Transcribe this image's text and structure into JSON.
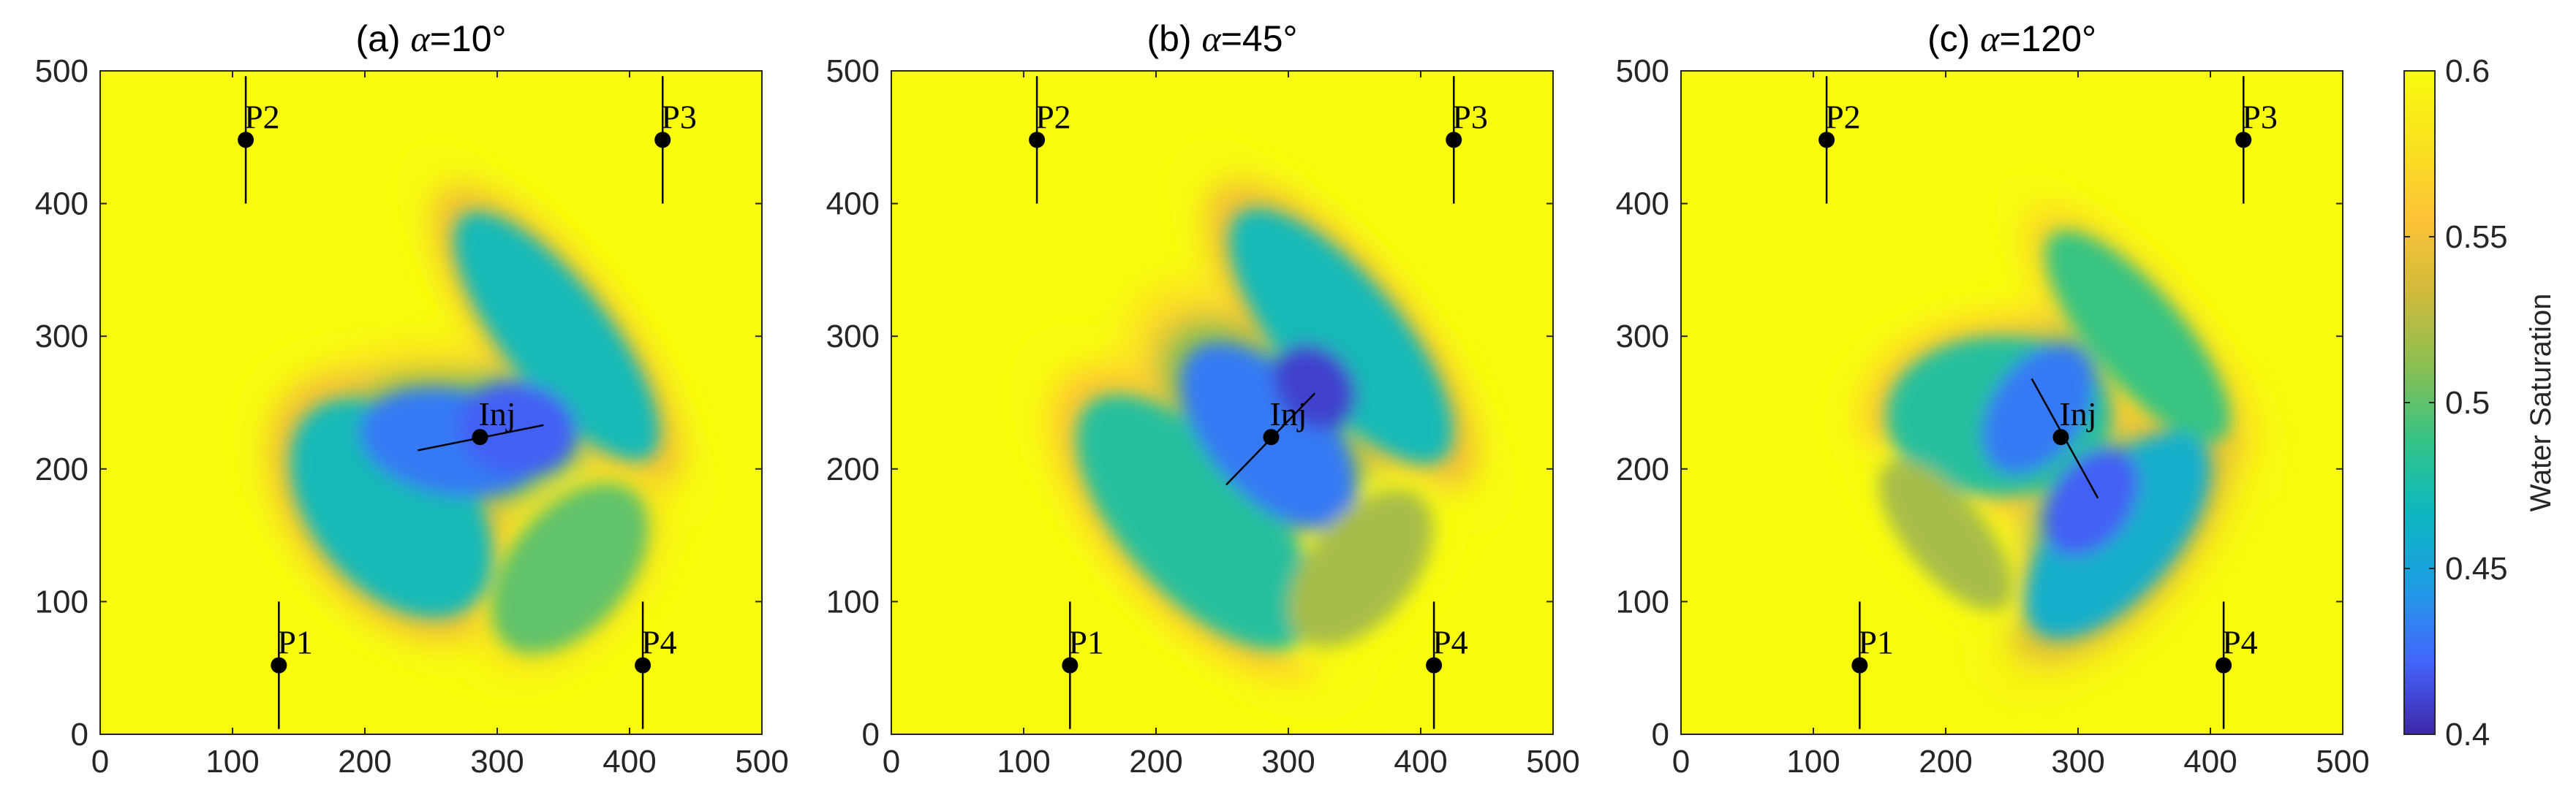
{
  "chart_data": [
    {
      "type": "heatmap",
      "title": "(a) α=10°",
      "title_prefix": "(a) ",
      "title_symbol": "α",
      "title_suffix": "=10°",
      "angle_deg": 10,
      "xlim": [
        0,
        500
      ],
      "ylim": [
        0,
        500
      ],
      "xticks": [
        0,
        100,
        200,
        300,
        400,
        500
      ],
      "yticks": [
        0,
        100,
        200,
        300,
        400,
        500
      ],
      "wells": [
        {
          "name": "P1",
          "x": 135,
          "y": 52
        },
        {
          "name": "P2",
          "x": 110,
          "y": 448
        },
        {
          "name": "P3",
          "x": 425,
          "y": 448
        },
        {
          "name": "P4",
          "x": 410,
          "y": 52
        },
        {
          "name": "Inj",
          "x": 287,
          "y": 224
        }
      ],
      "lobes": [
        {
          "x": 220,
          "y": 170,
          "rx": 60,
          "ry": 95,
          "rot": 40,
          "v": 0.47
        },
        {
          "x": 345,
          "y": 300,
          "rx": 40,
          "ry": 115,
          "rot": 38,
          "v": 0.47
        },
        {
          "x": 265,
          "y": 220,
          "rx": 70,
          "ry": 40,
          "rot": -10,
          "v": 0.43
        },
        {
          "x": 315,
          "y": 230,
          "rx": 45,
          "ry": 35,
          "rot": -10,
          "v": 0.42
        },
        {
          "x": 355,
          "y": 125,
          "rx": 45,
          "ry": 75,
          "rot": -40,
          "v": 0.5
        }
      ],
      "fractures": [
        {
          "x1": 240,
          "y1": 214,
          "x2": 335,
          "y2": 233
        }
      ]
    },
    {
      "type": "heatmap",
      "title": "(b) α=45°",
      "title_prefix": "(b) ",
      "title_symbol": "α",
      "title_suffix": "=45°",
      "angle_deg": 45,
      "xlim": [
        0,
        500
      ],
      "ylim": [
        0,
        500
      ],
      "xticks": [
        0,
        100,
        200,
        300,
        400,
        500
      ],
      "yticks": [
        0,
        100,
        200,
        300,
        400,
        500
      ],
      "wells": [
        {
          "name": "P1",
          "x": 135,
          "y": 52
        },
        {
          "name": "P2",
          "x": 110,
          "y": 448
        },
        {
          "name": "P3",
          "x": 425,
          "y": 448
        },
        {
          "name": "P4",
          "x": 410,
          "y": 52
        },
        {
          "name": "Inj",
          "x": 287,
          "y": 224
        }
      ],
      "lobes": [
        {
          "x": 230,
          "y": 160,
          "rx": 55,
          "ry": 120,
          "rot": 42,
          "v": 0.48
        },
        {
          "x": 340,
          "y": 300,
          "rx": 45,
          "ry": 120,
          "rot": 40,
          "v": 0.47
        },
        {
          "x": 285,
          "y": 225,
          "rx": 45,
          "ry": 85,
          "rot": 42,
          "v": 0.43
        },
        {
          "x": 320,
          "y": 262,
          "rx": 28,
          "ry": 35,
          "rot": 40,
          "v": 0.41
        },
        {
          "x": 355,
          "y": 125,
          "rx": 40,
          "ry": 70,
          "rot": -40,
          "v": 0.52
        }
      ],
      "fractures": [
        {
          "x1": 253,
          "y1": 188,
          "x2": 320,
          "y2": 257
        }
      ]
    },
    {
      "type": "heatmap",
      "title": "(c) α=120°",
      "title_prefix": "(c) ",
      "title_symbol": "α",
      "title_suffix": "=120°",
      "angle_deg": 120,
      "xlim": [
        0,
        500
      ],
      "ylim": [
        0,
        500
      ],
      "xticks": [
        0,
        100,
        200,
        300,
        400,
        500
      ],
      "yticks": [
        0,
        100,
        200,
        300,
        400,
        500
      ],
      "wells": [
        {
          "name": "P1",
          "x": 135,
          "y": 52
        },
        {
          "name": "P2",
          "x": 110,
          "y": 448
        },
        {
          "name": "P3",
          "x": 425,
          "y": 448
        },
        {
          "name": "P4",
          "x": 410,
          "y": 52
        },
        {
          "name": "Inj",
          "x": 287,
          "y": 224
        }
      ],
      "lobes": [
        {
          "x": 240,
          "y": 240,
          "rx": 85,
          "ry": 60,
          "rot": 0,
          "v": 0.48
        },
        {
          "x": 345,
          "y": 300,
          "rx": 35,
          "ry": 100,
          "rot": 40,
          "v": 0.49
        },
        {
          "x": 330,
          "y": 150,
          "rx": 45,
          "ry": 95,
          "rot": -40,
          "v": 0.46
        },
        {
          "x": 270,
          "y": 245,
          "rx": 35,
          "ry": 55,
          "rot": -35,
          "v": 0.43
        },
        {
          "x": 310,
          "y": 175,
          "rx": 30,
          "ry": 45,
          "rot": -35,
          "v": 0.42
        },
        {
          "x": 200,
          "y": 150,
          "rx": 30,
          "ry": 70,
          "rot": 40,
          "v": 0.52
        }
      ],
      "fractures": [
        {
          "x1": 265,
          "y1": 268,
          "x2": 315,
          "y2": 178
        }
      ]
    }
  ],
  "colorbar": {
    "label": "Water Saturation",
    "min": 0.4,
    "max": 0.6,
    "ticks": [
      "0.4",
      "0.45",
      "0.5",
      "0.55",
      "0.6"
    ],
    "colors": [
      "#3e26a8",
      "#4367fd",
      "#1f9ce4",
      "#0cb7c0",
      "#35c485",
      "#8bbf51",
      "#d0ba3b",
      "#fec338",
      "#f9e21e",
      "#f9fb0e"
    ]
  }
}
